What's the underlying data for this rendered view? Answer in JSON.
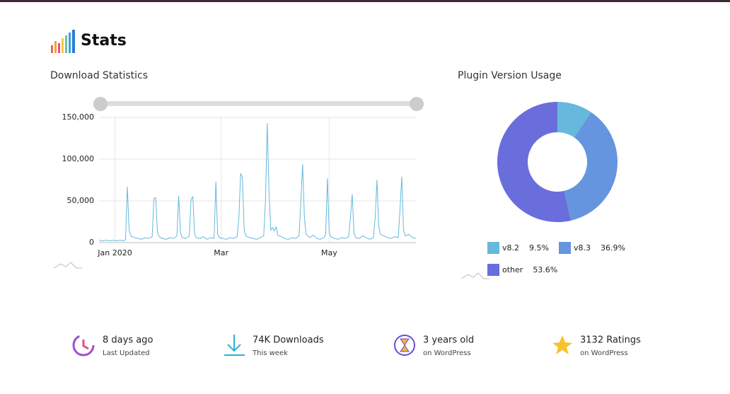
{
  "header": {
    "title": "Stats"
  },
  "chart_data": [
    {
      "type": "line",
      "title": "Download Statistics",
      "x": [
        -9,
        -7,
        -5,
        -3,
        -1,
        1,
        3,
        5,
        6,
        7,
        8,
        9,
        11,
        13,
        15,
        17,
        19,
        21,
        22,
        23,
        24,
        25,
        27,
        29,
        31,
        33,
        35,
        36,
        37,
        38,
        40,
        42,
        43,
        44,
        45,
        46,
        48,
        50,
        52,
        54,
        56,
        57,
        58,
        59,
        61,
        63,
        65,
        67,
        69,
        70,
        71,
        72,
        73,
        74,
        76,
        78,
        80,
        82,
        84,
        85,
        86,
        87,
        88,
        89,
        90,
        91,
        92,
        94,
        96,
        98,
        100,
        102,
        104,
        105,
        106,
        107,
        108,
        110,
        112,
        114,
        116,
        118,
        119,
        120,
        121,
        122,
        124,
        126,
        128,
        130,
        132,
        133,
        134,
        135,
        136,
        138,
        140,
        142,
        144,
        146,
        147,
        148,
        149,
        150,
        152,
        154,
        156,
        158,
        160,
        161,
        162,
        163,
        164,
        166,
        168,
        170
      ],
      "values": [
        3000,
        2000,
        3000,
        2000,
        3000,
        2000,
        3000,
        2000,
        4000,
        67000,
        15000,
        8000,
        6000,
        5000,
        4000,
        6000,
        5000,
        7000,
        53000,
        54000,
        12000,
        7000,
        5000,
        4000,
        6000,
        5000,
        8000,
        56000,
        12000,
        6000,
        5000,
        8000,
        52000,
        55000,
        10000,
        6000,
        5000,
        7000,
        4000,
        6000,
        5000,
        73000,
        10000,
        6000,
        5000,
        4000,
        6000,
        5000,
        7000,
        30000,
        83000,
        78000,
        15000,
        8000,
        6000,
        5000,
        4000,
        6000,
        8000,
        50000,
        143000,
        60000,
        15000,
        18000,
        14000,
        19000,
        9000,
        7000,
        5000,
        4000,
        6000,
        5000,
        8000,
        50000,
        94000,
        30000,
        10000,
        6000,
        9000,
        5000,
        4000,
        6000,
        10000,
        77000,
        12000,
        7000,
        5000,
        4000,
        6000,
        5000,
        7000,
        30000,
        58000,
        12000,
        6000,
        5000,
        8000,
        6000,
        4000,
        6000,
        30000,
        75000,
        20000,
        10000,
        8000,
        6000,
        5000,
        7000,
        6000,
        40000,
        79000,
        15000,
        8000,
        10000,
        6000,
        5000
      ],
      "color": "#66b8dc",
      "xlim": [
        -9,
        170
      ],
      "ylim": [
        0,
        150000
      ],
      "xticks": [
        {
          "value": 0,
          "label": "Jan 2020"
        },
        {
          "value": 60,
          "label": "Mar"
        },
        {
          "value": 121,
          "label": "May"
        }
      ],
      "yticks": [
        0,
        {
          "value": 50000,
          "label": "50,000"
        },
        {
          "value": 100000,
          "label": "100,000"
        },
        {
          "value": 150000,
          "label": "150,000"
        }
      ],
      "grid": true
    },
    {
      "type": "pie",
      "title": "Plugin Version Usage",
      "categories": [
        "v8.2",
        "v8.3",
        "other"
      ],
      "values": [
        9.5,
        36.9,
        53.6
      ],
      "value_labels": [
        "9.5%",
        "36.9%",
        "53.6%"
      ],
      "colors": [
        "#66b8dc",
        "#6495de",
        "#6a6ddc"
      ]
    }
  ],
  "stats": [
    {
      "title": "8 days ago",
      "subtitle": "Last Updated"
    },
    {
      "title": "74K Downloads",
      "subtitle": "This week"
    },
    {
      "title": "3 years old",
      "subtitle": "on WordPress"
    },
    {
      "title": "3132 Ratings",
      "subtitle": "on WordPress"
    }
  ]
}
